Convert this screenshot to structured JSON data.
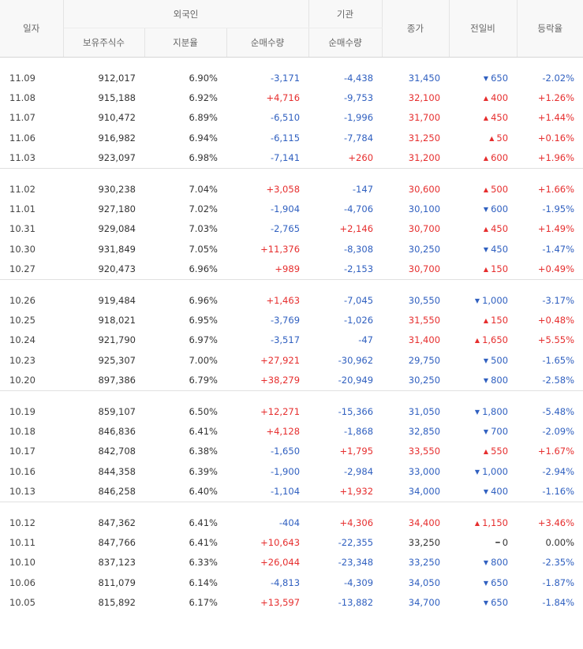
{
  "header": {
    "date": "일자",
    "foreign": "외국인",
    "institution": "기관",
    "close": "종가",
    "change": "전일비",
    "rate": "등락율",
    "holdings": "보유주식수",
    "share": "지분율",
    "foreign_net": "순매수량",
    "inst_net": "순매수량"
  },
  "groups": [
    [
      {
        "date": "11.09",
        "holdings": "912,017",
        "share": "6.90%",
        "foreign_net": "-3,171",
        "inst_net": "-4,438",
        "close": "31,450",
        "change": "650",
        "dir": "down",
        "rate": "-2.02%"
      },
      {
        "date": "11.08",
        "holdings": "915,188",
        "share": "6.92%",
        "foreign_net": "+4,716",
        "inst_net": "-9,753",
        "close": "32,100",
        "change": "400",
        "dir": "up",
        "rate": "+1.26%"
      },
      {
        "date": "11.07",
        "holdings": "910,472",
        "share": "6.89%",
        "foreign_net": "-6,510",
        "inst_net": "-1,996",
        "close": "31,700",
        "change": "450",
        "dir": "up",
        "rate": "+1.44%"
      },
      {
        "date": "11.06",
        "holdings": "916,982",
        "share": "6.94%",
        "foreign_net": "-6,115",
        "inst_net": "-7,784",
        "close": "31,250",
        "change": "50",
        "dir": "up",
        "rate": "+0.16%"
      },
      {
        "date": "11.03",
        "holdings": "923,097",
        "share": "6.98%",
        "foreign_net": "-7,141",
        "inst_net": "+260",
        "close": "31,200",
        "change": "600",
        "dir": "up",
        "rate": "+1.96%"
      }
    ],
    [
      {
        "date": "11.02",
        "holdings": "930,238",
        "share": "7.04%",
        "foreign_net": "+3,058",
        "inst_net": "-147",
        "close": "30,600",
        "change": "500",
        "dir": "up",
        "rate": "+1.66%"
      },
      {
        "date": "11.01",
        "holdings": "927,180",
        "share": "7.02%",
        "foreign_net": "-1,904",
        "inst_net": "-4,706",
        "close": "30,100",
        "change": "600",
        "dir": "down",
        "rate": "-1.95%"
      },
      {
        "date": "10.31",
        "holdings": "929,084",
        "share": "7.03%",
        "foreign_net": "-2,765",
        "inst_net": "+2,146",
        "close": "30,700",
        "change": "450",
        "dir": "up",
        "rate": "+1.49%"
      },
      {
        "date": "10.30",
        "holdings": "931,849",
        "share": "7.05%",
        "foreign_net": "+11,376",
        "inst_net": "-8,308",
        "close": "30,250",
        "change": "450",
        "dir": "down",
        "rate": "-1.47%"
      },
      {
        "date": "10.27",
        "holdings": "920,473",
        "share": "6.96%",
        "foreign_net": "+989",
        "inst_net": "-2,153",
        "close": "30,700",
        "change": "150",
        "dir": "up",
        "rate": "+0.49%"
      }
    ],
    [
      {
        "date": "10.26",
        "holdings": "919,484",
        "share": "6.96%",
        "foreign_net": "+1,463",
        "inst_net": "-7,045",
        "close": "30,550",
        "change": "1,000",
        "dir": "down",
        "rate": "-3.17%"
      },
      {
        "date": "10.25",
        "holdings": "918,021",
        "share": "6.95%",
        "foreign_net": "-3,769",
        "inst_net": "-1,026",
        "close": "31,550",
        "change": "150",
        "dir": "up",
        "rate": "+0.48%"
      },
      {
        "date": "10.24",
        "holdings": "921,790",
        "share": "6.97%",
        "foreign_net": "-3,517",
        "inst_net": "-47",
        "close": "31,400",
        "change": "1,650",
        "dir": "up",
        "rate": "+5.55%"
      },
      {
        "date": "10.23",
        "holdings": "925,307",
        "share": "7.00%",
        "foreign_net": "+27,921",
        "inst_net": "-30,962",
        "close": "29,750",
        "change": "500",
        "dir": "down",
        "rate": "-1.65%"
      },
      {
        "date": "10.20",
        "holdings": "897,386",
        "share": "6.79%",
        "foreign_net": "+38,279",
        "inst_net": "-20,949",
        "close": "30,250",
        "change": "800",
        "dir": "down",
        "rate": "-2.58%"
      }
    ],
    [
      {
        "date": "10.19",
        "holdings": "859,107",
        "share": "6.50%",
        "foreign_net": "+12,271",
        "inst_net": "-15,366",
        "close": "31,050",
        "change": "1,800",
        "dir": "down",
        "rate": "-5.48%"
      },
      {
        "date": "10.18",
        "holdings": "846,836",
        "share": "6.41%",
        "foreign_net": "+4,128",
        "inst_net": "-1,868",
        "close": "32,850",
        "change": "700",
        "dir": "down",
        "rate": "-2.09%"
      },
      {
        "date": "10.17",
        "holdings": "842,708",
        "share": "6.38%",
        "foreign_net": "-1,650",
        "inst_net": "+1,795",
        "close": "33,550",
        "change": "550",
        "dir": "up",
        "rate": "+1.67%"
      },
      {
        "date": "10.16",
        "holdings": "844,358",
        "share": "6.39%",
        "foreign_net": "-1,900",
        "inst_net": "-2,984",
        "close": "33,000",
        "change": "1,000",
        "dir": "down",
        "rate": "-2.94%"
      },
      {
        "date": "10.13",
        "holdings": "846,258",
        "share": "6.40%",
        "foreign_net": "-1,104",
        "inst_net": "+1,932",
        "close": "34,000",
        "change": "400",
        "dir": "down",
        "rate": "-1.16%"
      }
    ],
    [
      {
        "date": "10.12",
        "holdings": "847,362",
        "share": "6.41%",
        "foreign_net": "-404",
        "inst_net": "+4,306",
        "close": "34,400",
        "change": "1,150",
        "dir": "up",
        "rate": "+3.46%"
      },
      {
        "date": "10.11",
        "holdings": "847,766",
        "share": "6.41%",
        "foreign_net": "+10,643",
        "inst_net": "-22,355",
        "close": "33,250",
        "change": "0",
        "dir": "flat",
        "rate": "0.00%"
      },
      {
        "date": "10.10",
        "holdings": "837,123",
        "share": "6.33%",
        "foreign_net": "+26,044",
        "inst_net": "-23,348",
        "close": "33,250",
        "change": "800",
        "dir": "down",
        "rate": "-2.35%"
      },
      {
        "date": "10.06",
        "holdings": "811,079",
        "share": "6.14%",
        "foreign_net": "-4,813",
        "inst_net": "-4,309",
        "close": "34,050",
        "change": "650",
        "dir": "down",
        "rate": "-1.87%"
      },
      {
        "date": "10.05",
        "holdings": "815,892",
        "share": "6.17%",
        "foreign_net": "+13,597",
        "inst_net": "-13,882",
        "close": "34,700",
        "change": "650",
        "dir": "down",
        "rate": "-1.84%"
      }
    ]
  ],
  "colors": {
    "up": "#e62e2e",
    "down": "#3060c0",
    "header_bg": "#f8f8f8"
  },
  "icons": {
    "up": "triangle-up-icon",
    "down": "triangle-down-icon",
    "flat": "dash-icon"
  }
}
